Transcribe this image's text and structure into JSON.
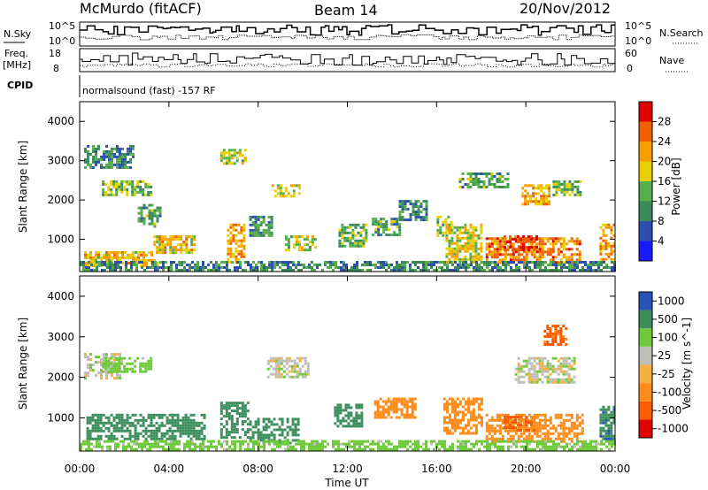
{
  "header": {
    "station": "McMurdo (fitACF)",
    "beam": "Beam 14",
    "date": "20/Nov/2012"
  },
  "noise_panel": {
    "left_label": "N.Sky",
    "right_label": "N.Search",
    "tick_top_left": "10^5",
    "tick_bottom_left": "10^0",
    "tick_top_right": "10^5",
    "tick_bottom_right": "10^0"
  },
  "freq_panel": {
    "left_label_1": "Freq.",
    "left_label_2": "[MHz]",
    "right_label": "Nave",
    "left_ticks": [
      "18",
      "8"
    ],
    "right_ticks": [
      "60",
      "0"
    ]
  },
  "cpid": {
    "label": "CPID",
    "text": "normalsound (fast) -157 RF"
  },
  "colors": {
    "power_scale": [
      "#1a1aff",
      "#2e4fb0",
      "#3a8a5a",
      "#54b04a",
      "#e8d000",
      "#f5a000",
      "#f06000",
      "#e00000"
    ],
    "velocity_scale": [
      "#e00000",
      "#ff5a00",
      "#ff8c1a",
      "#f5b041",
      "#bfbfb6",
      "#6fca3b",
      "#3c8f5c",
      "#2752b6"
    ]
  },
  "chart_data": [
    {
      "type": "heatmap",
      "title": "",
      "xlabel": "Time UT",
      "ylabel": "Slant Range [km]",
      "x_tick_labels": [
        "00:00",
        "04:00",
        "08:00",
        "12:00",
        "16:00",
        "20:00",
        "00:00"
      ],
      "x_range_hours": [
        0,
        24
      ],
      "ylim": [
        180,
        4500
      ],
      "y_tick_labels": [
        "1000",
        "2000",
        "3000",
        "4000"
      ],
      "colorbar": {
        "label": "Power [dB]",
        "ticks": [
          "4",
          "8",
          "12",
          "16",
          "20",
          "24",
          "28"
        ],
        "range": [
          0,
          32
        ]
      },
      "patches": [
        {
          "t0": 0.2,
          "t1": 3.5,
          "r0": 350,
          "r1": 700,
          "v": 20
        },
        {
          "t0": 0.2,
          "t1": 2.4,
          "r0": 2800,
          "r1": 3400,
          "v": 10
        },
        {
          "t0": 1.0,
          "t1": 3.2,
          "r0": 2150,
          "r1": 2500,
          "v": 14
        },
        {
          "t0": 2.6,
          "t1": 3.6,
          "r0": 1300,
          "r1": 1900,
          "v": 12
        },
        {
          "t0": 3.3,
          "t1": 5.2,
          "r0": 650,
          "r1": 1100,
          "v": 20
        },
        {
          "t0": 6.3,
          "t1": 7.4,
          "r0": 2900,
          "r1": 3300,
          "v": 16
        },
        {
          "t0": 6.6,
          "t1": 7.4,
          "r0": 450,
          "r1": 1400,
          "v": 22
        },
        {
          "t0": 7.6,
          "t1": 8.6,
          "r0": 1100,
          "r1": 1600,
          "v": 11
        },
        {
          "t0": 8.6,
          "t1": 9.9,
          "r0": 2100,
          "r1": 2400,
          "v": 18
        },
        {
          "t0": 9.2,
          "t1": 10.6,
          "r0": 700,
          "r1": 1100,
          "v": 16
        },
        {
          "t0": 11.6,
          "t1": 12.8,
          "r0": 850,
          "r1": 1400,
          "v": 13
        },
        {
          "t0": 13.1,
          "t1": 14.3,
          "r0": 1100,
          "r1": 1550,
          "v": 12
        },
        {
          "t0": 14.3,
          "t1": 15.6,
          "r0": 1500,
          "r1": 2000,
          "v": 10
        },
        {
          "t0": 16.0,
          "t1": 16.7,
          "r0": 1100,
          "r1": 1600,
          "v": 14
        },
        {
          "t0": 16.4,
          "t1": 18.0,
          "r0": 400,
          "r1": 1400,
          "v": 18
        },
        {
          "t0": 18.2,
          "t1": 22.4,
          "r0": 400,
          "r1": 1050,
          "v": 24
        },
        {
          "t0": 19.0,
          "t1": 20.5,
          "r0": 700,
          "r1": 1100,
          "v": 28
        },
        {
          "t0": 19.8,
          "t1": 21.0,
          "r0": 1900,
          "r1": 2400,
          "v": 22
        },
        {
          "t0": 17.0,
          "t1": 19.2,
          "r0": 2300,
          "r1": 2700,
          "v": 12
        },
        {
          "t0": 21.2,
          "t1": 22.4,
          "r0": 2100,
          "r1": 2500,
          "v": 14
        },
        {
          "t0": 0.0,
          "t1": 24.0,
          "r0": 200,
          "r1": 450,
          "v": 10
        },
        {
          "t0": 23.3,
          "t1": 24.0,
          "r0": 500,
          "r1": 1400,
          "v": 22
        }
      ]
    },
    {
      "type": "heatmap",
      "title": "",
      "xlabel": "Time UT",
      "ylabel": "Slant Range [km]",
      "x_tick_labels": [
        "00:00",
        "04:00",
        "08:00",
        "12:00",
        "16:00",
        "20:00",
        "00:00"
      ],
      "x_range_hours": [
        0,
        24
      ],
      "ylim": [
        180,
        4500
      ],
      "y_tick_labels": [
        "1000",
        "2000",
        "3000",
        "4000"
      ],
      "colorbar": {
        "label": "Velocity [m s^-1]",
        "ticks": [
          "-1000",
          "-500",
          "-100",
          "-25",
          "25",
          "100",
          "500",
          "1000"
        ]
      },
      "patches": [
        {
          "t0": 0.3,
          "t1": 5.6,
          "r0": 500,
          "r1": 1100,
          "v": 200
        },
        {
          "t0": 0.2,
          "t1": 1.8,
          "r0": 2000,
          "r1": 2600,
          "v": 0
        },
        {
          "t0": 1.0,
          "t1": 3.2,
          "r0": 2150,
          "r1": 2500,
          "v": 60
        },
        {
          "t0": 6.3,
          "t1": 7.5,
          "r0": 500,
          "r1": 1400,
          "v": 300
        },
        {
          "t0": 7.6,
          "t1": 9.8,
          "r0": 400,
          "r1": 1000,
          "v": 300
        },
        {
          "t0": 8.4,
          "t1": 10.2,
          "r0": 2000,
          "r1": 2500,
          "v": 0
        },
        {
          "t0": 11.4,
          "t1": 12.6,
          "r0": 800,
          "r1": 1350,
          "v": 250
        },
        {
          "t0": 13.2,
          "t1": 15.0,
          "r0": 1000,
          "r1": 1500,
          "v": -300
        },
        {
          "t0": 16.3,
          "t1": 18.0,
          "r0": 600,
          "r1": 1500,
          "v": -350
        },
        {
          "t0": 18.2,
          "t1": 22.6,
          "r0": 400,
          "r1": 1100,
          "v": -300
        },
        {
          "t0": 19.0,
          "t1": 20.4,
          "r0": 700,
          "r1": 1050,
          "v": -700
        },
        {
          "t0": 19.5,
          "t1": 22.2,
          "r0": 1900,
          "r1": 2500,
          "v": 0
        },
        {
          "t0": 20.8,
          "t1": 21.8,
          "r0": 2800,
          "r1": 3300,
          "v": -700
        },
        {
          "t0": 0.0,
          "t1": 24.0,
          "r0": 200,
          "r1": 450,
          "v": 60
        },
        {
          "t0": 23.3,
          "t1": 24.0,
          "r0": 500,
          "r1": 1300,
          "v": 400
        }
      ]
    }
  ]
}
